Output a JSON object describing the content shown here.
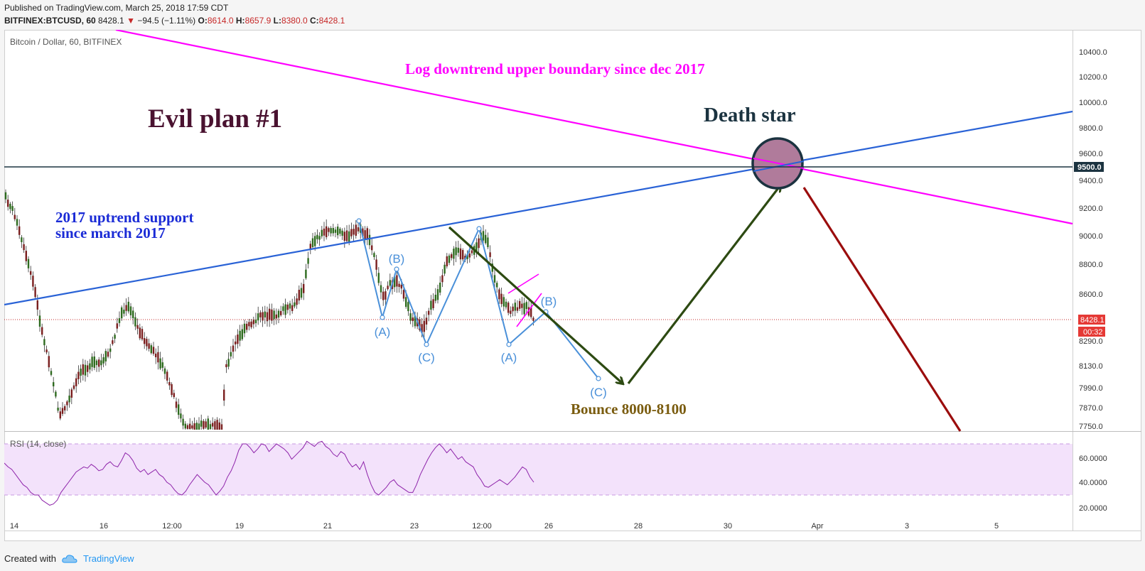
{
  "header": {
    "published": "Published on TradingView.com, March 25, 2018 17:59 CDT",
    "symbol": "BITFINEX:BTCUSD, 60",
    "last": "8428.1",
    "change": "−94.5 (−1.11%)",
    "o_label": "O:",
    "o": "8614.0",
    "h_label": "H:",
    "h": "8657.9",
    "l_label": "L:",
    "l": "8380.0",
    "c_label": "C:",
    "c": "8428.1"
  },
  "footer": {
    "created_with": "Created with",
    "brand": "TradingView"
  },
  "colors": {
    "magenta": "#ff00ff",
    "blue": "#2962d6",
    "darkgreen": "#2d4a12",
    "darkred": "#9b0d0d",
    "title": "#4a1230",
    "deathstar": "#b07b9b",
    "rsi_line": "#8e24aa",
    "rsi_band": "#f3e2fb",
    "wave": "#4a90d9"
  },
  "chart_data": {
    "type": "candlestick",
    "title": "Bitcoin / Dollar, 60, BITFINEX",
    "ylim": [
      7700,
      10530
    ],
    "y_ticks": [
      "10400.0",
      "10200.0",
      "10000.0",
      "9800.0",
      "9600.0",
      "9400.0",
      "9200.0",
      "9000.0",
      "8800.0",
      "8600.0",
      "8290.0",
      "8130.0",
      "7990.0",
      "7870.0",
      "7750.0"
    ],
    "x_ticks": [
      "14",
      "16",
      "12:00",
      "19",
      "21",
      "23",
      "12:00",
      "26",
      "28",
      "30",
      "Apr",
      "3",
      "5"
    ],
    "price_label": "8428.1",
    "countdown": "00:32",
    "level_label": "9500.0",
    "level": 9500,
    "annotations": {
      "evil": "Evil plan #1",
      "log_downtrend": "Log downtrend upper boundary since dec 2017",
      "death_star": "Death star",
      "uptrend_1": "2017 uptrend support",
      "uptrend_2": "since march 2017",
      "bounce": "Bounce 8000-8100"
    },
    "waves": [
      {
        "label": "(A)"
      },
      {
        "label": "(B)"
      },
      {
        "label": "(C)"
      },
      {
        "label": "(A)"
      },
      {
        "label": "(B)"
      },
      {
        "label": "(C)"
      }
    ],
    "rsi": {
      "label": "RSI (14, close)",
      "y_ticks": [
        "60.0000",
        "40.0000",
        "20.0000"
      ],
      "upper": 70,
      "lower": 30,
      "values": [
        55,
        52,
        50,
        46,
        42,
        38,
        36,
        32,
        30,
        30,
        26,
        24,
        22,
        23,
        26,
        32,
        36,
        40,
        44,
        48,
        50,
        52,
        51,
        54,
        52,
        49,
        50,
        54,
        56,
        53,
        52,
        57,
        63,
        61,
        57,
        51,
        48,
        50,
        46,
        48,
        50,
        46,
        44,
        40,
        38,
        34,
        31,
        30,
        33,
        38,
        42,
        46,
        43,
        40,
        38,
        34,
        30,
        33,
        37,
        44,
        49,
        56,
        65,
        70,
        70,
        67,
        63,
        66,
        70,
        69,
        64,
        67,
        70,
        68,
        66,
        63,
        58,
        61,
        64,
        67,
        72,
        70,
        68,
        71,
        72,
        68,
        66,
        62,
        60,
        64,
        62,
        56,
        52,
        54,
        50,
        56,
        46,
        38,
        32,
        30,
        33,
        36,
        40,
        42,
        38,
        36,
        34,
        32,
        32,
        38,
        46,
        52,
        58,
        63,
        67,
        70,
        67,
        63,
        66,
        62,
        58,
        60,
        56,
        54,
        52,
        46,
        42,
        37,
        36,
        38,
        40,
        42,
        40,
        38,
        41,
        44,
        48,
        52,
        50,
        44,
        40
      ]
    }
  }
}
